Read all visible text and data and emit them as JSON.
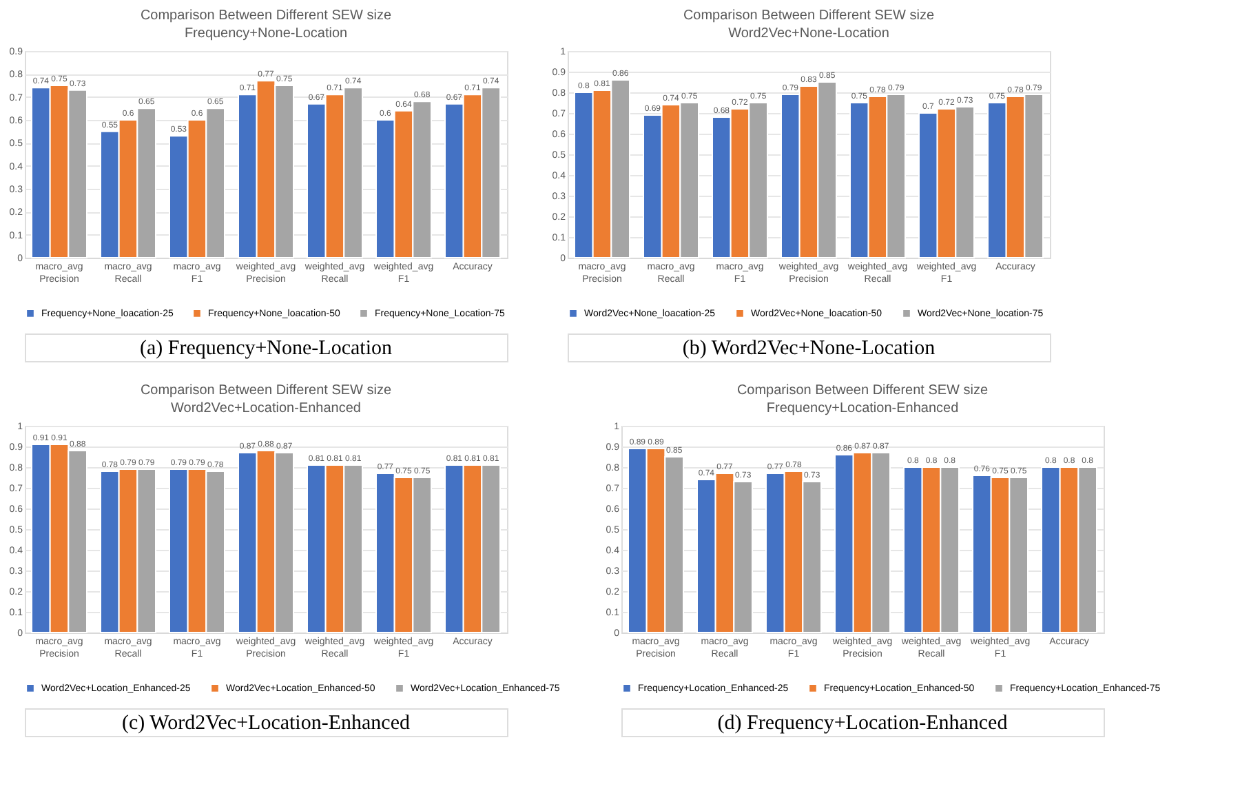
{
  "chart_data": [
    {
      "type": "bar",
      "title": "Comparison Between Different SEW size",
      "subtitle": "Frequency+None-Location",
      "categories": [
        "macro_avg Precision",
        "macro_avg Recall",
        "macro_avg F1",
        "weighted_avg Precision",
        "weighted_avg Recall",
        "weighted_avg F1",
        "Accuracy"
      ],
      "series": [
        {
          "name": "Frequency+None_loacation-25",
          "color": "#4472c4",
          "values": [
            0.74,
            0.55,
            0.53,
            0.71,
            0.67,
            0.6,
            0.67
          ]
        },
        {
          "name": "Frequency+None_loacation-50",
          "color": "#ed7d31",
          "values": [
            0.75,
            0.6,
            0.6,
            0.77,
            0.71,
            0.64,
            0.71
          ]
        },
        {
          "name": "Frequency+None_Location-75",
          "color": "#a5a5a5",
          "values": [
            0.73,
            0.65,
            0.65,
            0.75,
            0.74,
            0.68,
            0.74
          ]
        }
      ],
      "ylim": [
        0,
        0.9
      ],
      "yticks": [
        0,
        0.1,
        0.2,
        0.3,
        0.4,
        0.5,
        0.6,
        0.7,
        0.8,
        0.9
      ],
      "grid": "y",
      "legend": "bottom",
      "data_labels": true,
      "annotations": [
        "(a) Frequency+None-Location"
      ]
    },
    {
      "type": "bar",
      "title": "Comparison Between Different SEW size",
      "subtitle": "Word2Vec+None-Location",
      "categories": [
        "macro_avg Precision",
        "macro_avg Recall",
        "macro_avg F1",
        "weighted_avg Precision",
        "weighted_avg Recall",
        "weighted_avg F1",
        "Accuracy"
      ],
      "series": [
        {
          "name": "Word2Vec+None_loacation-25",
          "color": "#4472c4",
          "values": [
            0.8,
            0.69,
            0.68,
            0.79,
            0.75,
            0.7,
            0.75
          ]
        },
        {
          "name": "Word2Vec+None_loacation-50",
          "color": "#ed7d31",
          "values": [
            0.81,
            0.74,
            0.72,
            0.83,
            0.78,
            0.72,
            0.78
          ]
        },
        {
          "name": "Word2Vec+None_location-75",
          "color": "#a5a5a5",
          "values": [
            0.86,
            0.75,
            0.75,
            0.85,
            0.79,
            0.73,
            0.79
          ]
        }
      ],
      "ylim": [
        0,
        1
      ],
      "yticks": [
        0,
        0.1,
        0.2,
        0.3,
        0.4,
        0.5,
        0.6,
        0.7,
        0.8,
        0.9,
        1
      ],
      "grid": "y",
      "legend": "bottom",
      "data_labels": true,
      "annotations": [
        "(b) Word2Vec+None-Location"
      ]
    },
    {
      "type": "bar",
      "title": "Comparison Between Different SEW size",
      "subtitle": "Word2Vec+Location-Enhanced",
      "categories": [
        "macro_avg Precision",
        "macro_avg Recall",
        "macro_avg F1",
        "weighted_avg Precision",
        "weighted_avg Recall",
        "weighted_avg F1",
        "Accuracy"
      ],
      "series": [
        {
          "name": "Word2Vec+Location_Enhanced-25",
          "color": "#4472c4",
          "values": [
            0.91,
            0.78,
            0.79,
            0.87,
            0.81,
            0.77,
            0.81
          ]
        },
        {
          "name": "Word2Vec+Location_Enhanced-50",
          "color": "#ed7d31",
          "values": [
            0.91,
            0.79,
            0.79,
            0.88,
            0.81,
            0.75,
            0.81
          ]
        },
        {
          "name": "Word2Vec+Location_Enhanced-75",
          "color": "#a5a5a5",
          "values": [
            0.88,
            0.79,
            0.78,
            0.87,
            0.81,
            0.75,
            0.81
          ]
        }
      ],
      "ylim": [
        0,
        1
      ],
      "yticks": [
        0,
        0.1,
        0.2,
        0.3,
        0.4,
        0.5,
        0.6,
        0.7,
        0.8,
        0.9,
        1
      ],
      "grid": "y",
      "legend": "bottom",
      "data_labels": true,
      "annotations": [
        "(c) Word2Vec+Location-Enhanced"
      ]
    },
    {
      "type": "bar",
      "title": "Comparison Between Different SEW size",
      "subtitle": "Frequency+Location-Enhanced",
      "categories": [
        "macro_avg Precision",
        "macro_avg Recall",
        "macro_avg F1",
        "weighted_avg Precision",
        "weighted_avg Recall",
        "weighted_avg F1",
        "Accuracy"
      ],
      "series": [
        {
          "name": "Frequency+Location_Enhanced-25",
          "color": "#4472c4",
          "values": [
            0.89,
            0.74,
            0.77,
            0.86,
            0.8,
            0.76,
            0.8
          ]
        },
        {
          "name": "Frequency+Location_Enhanced-50",
          "color": "#ed7d31",
          "values": [
            0.89,
            0.77,
            0.78,
            0.87,
            0.8,
            0.75,
            0.8
          ]
        },
        {
          "name": "Frequency+Location_Enhanced-75",
          "color": "#a5a5a5",
          "values": [
            0.85,
            0.73,
            0.73,
            0.87,
            0.8,
            0.75,
            0.8
          ]
        }
      ],
      "ylim": [
        0,
        1
      ],
      "yticks": [
        0,
        0.1,
        0.2,
        0.3,
        0.4,
        0.5,
        0.6,
        0.7,
        0.8,
        0.9,
        1
      ],
      "grid": "y",
      "legend": "bottom",
      "data_labels": true,
      "annotations": [
        "(d) Frequency+Location-Enhanced"
      ]
    }
  ]
}
